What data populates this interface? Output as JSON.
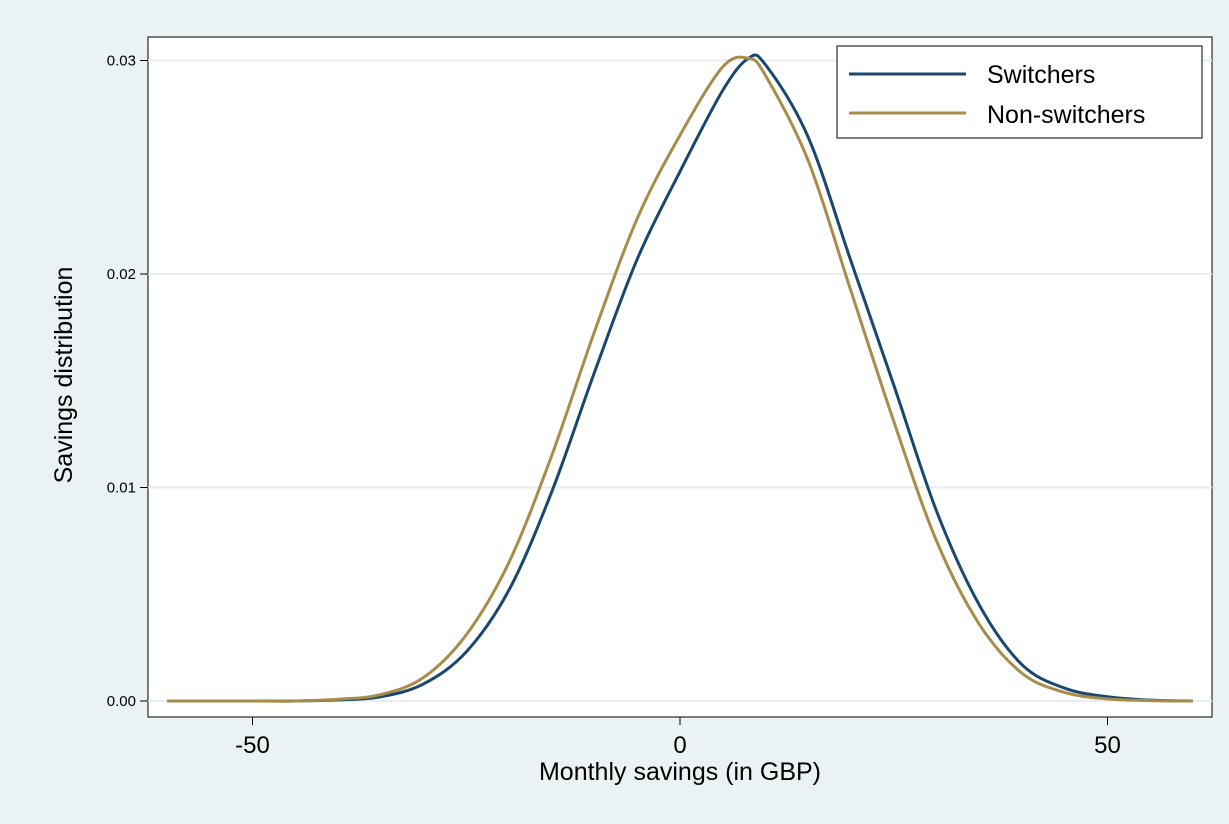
{
  "chart_data": {
    "type": "line",
    "title": "",
    "xlabel": "Monthly savings (in GBP)",
    "ylabel": "Savings distribution",
    "xlim": [
      -60,
      60
    ],
    "ylim": [
      0,
      0.031
    ],
    "x_ticks": [
      -50,
      0,
      50
    ],
    "x_tick_labels": [
      "-50",
      "0",
      "50"
    ],
    "y_ticks": [
      0,
      0.01,
      0.02,
      0.03
    ],
    "y_tick_labels": [
      "0.00",
      "0.01",
      "0.02",
      "0.03"
    ],
    "grid": "horizontal",
    "legend_position": "top-right",
    "x": [
      -60,
      -50,
      -45,
      -40,
      -35,
      -30,
      -25,
      -20,
      -15,
      -10,
      -5,
      0,
      5,
      8,
      10,
      15,
      20,
      25,
      30,
      35,
      40,
      45,
      50,
      55,
      60
    ],
    "series": [
      {
        "name": "Switchers",
        "color": "#1a476f",
        "values": [
          0.0,
          0.0,
          0.0,
          5e-05,
          0.0002,
          0.0008,
          0.0023,
          0.0052,
          0.0098,
          0.0154,
          0.0207,
          0.0248,
          0.0286,
          0.0301,
          0.0298,
          0.0264,
          0.0206,
          0.0148,
          0.0089,
          0.0045,
          0.0017,
          0.0006,
          0.0002,
          4e-05,
          0.0
        ]
      },
      {
        "name": "Non-switchers",
        "color": "#a98c4a",
        "values": [
          0.0,
          0.0,
          0.0,
          8e-05,
          0.0003,
          0.0011,
          0.0031,
          0.0065,
          0.0115,
          0.0173,
          0.0226,
          0.0265,
          0.0297,
          0.0301,
          0.0293,
          0.0253,
          0.0192,
          0.0131,
          0.0075,
          0.0036,
          0.0013,
          0.0004,
          0.0001,
          2e-05,
          0.0
        ]
      }
    ]
  }
}
